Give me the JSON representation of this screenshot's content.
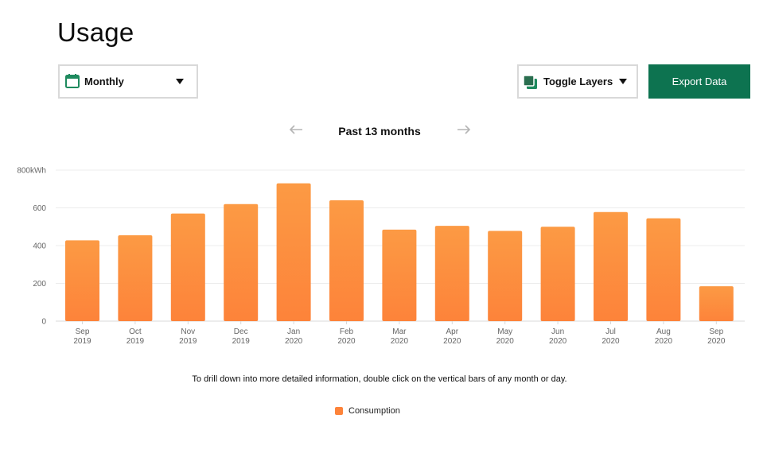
{
  "page": {
    "title": "Usage"
  },
  "toolbar": {
    "period_select": {
      "label": "Monthly",
      "icon": "calendar-icon"
    },
    "layers_select": {
      "label": "Toggle Layers",
      "icon": "layers-icon"
    },
    "export_label": "Export Data"
  },
  "navigation": {
    "period_label": "Past 13 months"
  },
  "hint": "To drill down into more detailed information, double click on the vertical bars of any month or day.",
  "legend": {
    "label": "Consumption"
  },
  "colors": {
    "accent": "#0d7350",
    "bar_top": "#fc9a44",
    "bar_bottom": "#fd833a",
    "grid": "#ececec",
    "calendar_icon": "#1e8a5e"
  },
  "chart_data": {
    "type": "bar",
    "categories": [
      [
        "Sep",
        "2019"
      ],
      [
        "Oct",
        "2019"
      ],
      [
        "Nov",
        "2019"
      ],
      [
        "Dec",
        "2019"
      ],
      [
        "Jan",
        "2020"
      ],
      [
        "Feb",
        "2020"
      ],
      [
        "Mar",
        "2020"
      ],
      [
        "Apr",
        "2020"
      ],
      [
        "May",
        "2020"
      ],
      [
        "Jun",
        "2020"
      ],
      [
        "Jul",
        "2020"
      ],
      [
        "Aug",
        "2020"
      ],
      [
        "Sep",
        "2020"
      ]
    ],
    "series": [
      {
        "name": "Consumption",
        "values": [
          428,
          455,
          570,
          620,
          730,
          640,
          485,
          505,
          478,
          500,
          578,
          545,
          185
        ]
      }
    ],
    "y_ticks": [
      "0",
      "200",
      "400",
      "600",
      "800kWh"
    ],
    "ylim": [
      0,
      800
    ],
    "grid": true,
    "legend_position": "bottom-center"
  }
}
